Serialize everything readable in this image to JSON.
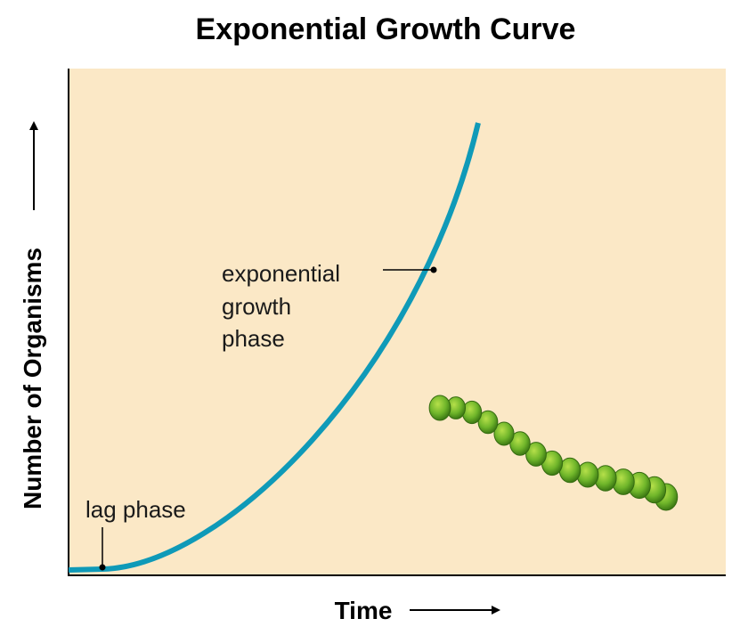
{
  "title": "Exponential Growth Curve",
  "y_axis_label": "Number of Organisms",
  "x_axis_label": "Time",
  "annotations": {
    "exponential": [
      "exponential",
      "growth",
      "phase"
    ],
    "lag": "lag phase"
  }
}
